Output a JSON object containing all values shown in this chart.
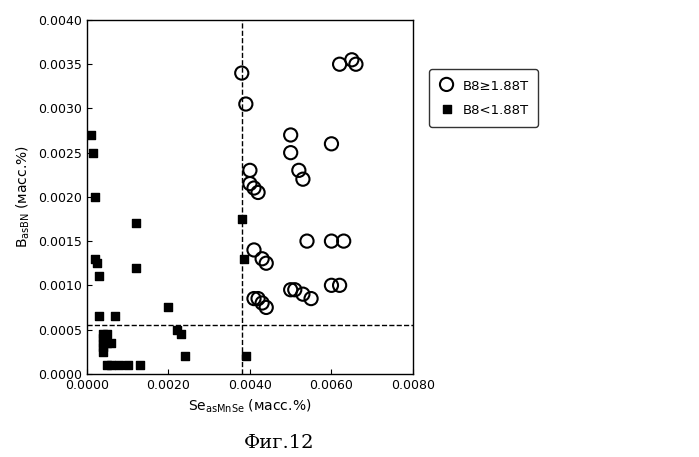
{
  "title": "Фиг.12",
  "xlabel": "Se$_{asMnSe}$ (масс.%)",
  "ylabel": "B$_{asBN}$ (масс.%)",
  "xlim": [
    0,
    0.008
  ],
  "ylim": [
    0,
    0.004
  ],
  "xdash": 0.0038,
  "ydash": 0.00055,
  "open_circles": [
    [
      0.0038,
      0.0034
    ],
    [
      0.0039,
      0.00305
    ],
    [
      0.004,
      0.0023
    ],
    [
      0.004,
      0.00215
    ],
    [
      0.0041,
      0.0021
    ],
    [
      0.0042,
      0.00205
    ],
    [
      0.005,
      0.0027
    ],
    [
      0.005,
      0.0025
    ],
    [
      0.0052,
      0.0023
    ],
    [
      0.0053,
      0.0022
    ],
    [
      0.006,
      0.0026
    ],
    [
      0.0062,
      0.0035
    ],
    [
      0.0065,
      0.00355
    ],
    [
      0.0066,
      0.0035
    ],
    [
      0.0041,
      0.0014
    ],
    [
      0.0043,
      0.0013
    ],
    [
      0.0044,
      0.00125
    ],
    [
      0.0054,
      0.0015
    ],
    [
      0.006,
      0.0015
    ],
    [
      0.0063,
      0.0015
    ],
    [
      0.0041,
      0.00085
    ],
    [
      0.0042,
      0.00085
    ],
    [
      0.0043,
      0.0008
    ],
    [
      0.0044,
      0.00075
    ],
    [
      0.005,
      0.00095
    ],
    [
      0.0051,
      0.00095
    ],
    [
      0.0053,
      0.0009
    ],
    [
      0.0055,
      0.00085
    ],
    [
      0.006,
      0.001
    ],
    [
      0.0062,
      0.001
    ]
  ],
  "filled_squares": [
    [
      0.0001,
      0.0027
    ],
    [
      0.00015,
      0.0025
    ],
    [
      0.0002,
      0.002
    ],
    [
      0.0002,
      0.0013
    ],
    [
      0.00025,
      0.00125
    ],
    [
      0.0003,
      0.0011
    ],
    [
      0.0003,
      0.00065
    ],
    [
      0.0004,
      0.00045
    ],
    [
      0.0004,
      0.0004
    ],
    [
      0.0004,
      0.00035
    ],
    [
      0.0004,
      0.0003
    ],
    [
      0.0004,
      0.00025
    ],
    [
      0.0005,
      0.00045
    ],
    [
      0.0005,
      0.00035
    ],
    [
      0.0005,
      0.0001
    ],
    [
      0.0006,
      0.00035
    ],
    [
      0.0006,
      0.0001
    ],
    [
      0.0007,
      0.00065
    ],
    [
      0.0008,
      0.0001
    ],
    [
      0.001,
      0.0001
    ],
    [
      0.0012,
      0.0017
    ],
    [
      0.0012,
      0.0012
    ],
    [
      0.0013,
      0.0001
    ],
    [
      0.002,
      0.00075
    ],
    [
      0.0022,
      0.0005
    ],
    [
      0.0023,
      0.00045
    ],
    [
      0.0024,
      0.0002
    ],
    [
      0.0038,
      0.00175
    ],
    [
      0.00385,
      0.0013
    ],
    [
      0.0039,
      0.0002
    ]
  ],
  "legend_labels": [
    "B8≥1.88T",
    "B8<1.88T"
  ],
  "background_color": "#ffffff"
}
